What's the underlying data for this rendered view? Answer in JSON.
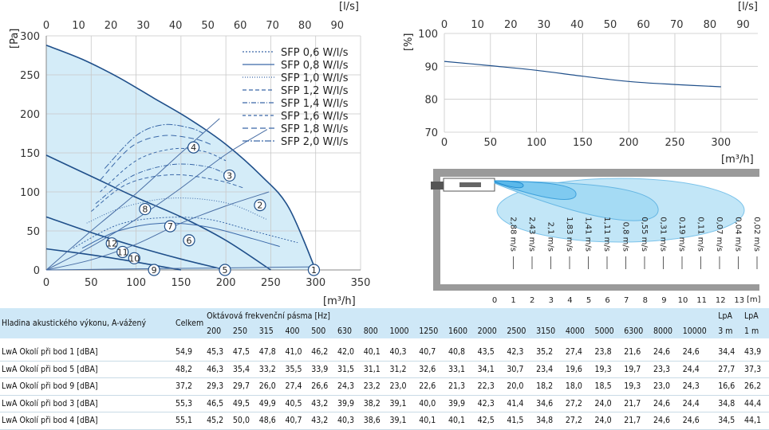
{
  "chart_data": [
    {
      "type": "line",
      "title": "",
      "xlabel": "[m³/h]",
      "ylabel": "[Pa]",
      "top_xlabel": "[l/s]",
      "xlim": [
        0,
        350
      ],
      "ylim": [
        0,
        300
      ],
      "x_ticks": [
        "0",
        "50",
        "100",
        "150",
        "200",
        "250",
        "300",
        "350"
      ],
      "y_ticks": [
        "0",
        "50",
        "100",
        "150",
        "200",
        "250",
        "300"
      ],
      "top_ticks": [
        "0",
        "10",
        "20",
        "30",
        "40",
        "50",
        "60",
        "70",
        "80",
        "90"
      ],
      "legend_position": "top-right",
      "fan_curves": [
        {
          "x": [
            0,
            40,
            80,
            120,
            160,
            200,
            240,
            270,
            300
          ],
          "y": [
            288,
            270,
            247,
            220,
            193,
            161,
            120,
            80,
            0
          ]
        },
        {
          "x": [
            0,
            50,
            100,
            150,
            200,
            250
          ],
          "y": [
            147,
            120,
            93,
            68,
            38,
            0
          ]
        },
        {
          "x": [
            0,
            50,
            100,
            150,
            200
          ],
          "y": [
            68,
            48,
            30,
            14,
            0
          ]
        },
        {
          "x": [
            0,
            40,
            80,
            120,
            150
          ],
          "y": [
            27,
            21,
            14,
            6,
            0
          ]
        }
      ],
      "system_curves": [
        {
          "x": [
            0,
            75,
            150,
            225,
            300
          ],
          "y": [
            0,
            1,
            2,
            3,
            4
          ]
        },
        {
          "x": [
            0,
            50,
            100,
            150,
            200,
            248
          ],
          "y": [
            0,
            13,
            33,
            60,
            82,
            100
          ]
        },
        {
          "x": [
            0,
            50,
            100,
            150,
            200,
            246
          ],
          "y": [
            0,
            30,
            65,
            105,
            148,
            180
          ]
        },
        {
          "x": [
            0,
            50,
            100,
            150,
            193
          ],
          "y": [
            0,
            50,
            98,
            150,
            194
          ]
        }
      ],
      "points": [
        {
          "label": "1",
          "x": 298,
          "y": 0
        },
        {
          "label": "2",
          "x": 238,
          "y": 83
        },
        {
          "label": "3",
          "x": 204,
          "y": 121
        },
        {
          "label": "4",
          "x": 164,
          "y": 157
        },
        {
          "label": "5",
          "x": 199,
          "y": 0
        },
        {
          "label": "6",
          "x": 159,
          "y": 38
        },
        {
          "label": "7",
          "x": 138,
          "y": 56
        },
        {
          "label": "8",
          "x": 110,
          "y": 78
        },
        {
          "label": "9",
          "x": 120,
          "y": 0
        },
        {
          "label": "10",
          "x": 98,
          "y": 15
        },
        {
          "label": "11",
          "x": 85,
          "y": 23
        },
        {
          "label": "12",
          "x": 73,
          "y": 34
        }
      ],
      "series": [
        {
          "name": "SFP 0,6 W/l/s",
          "dash": "2,2",
          "x": [
            30,
            80,
            130,
            180,
            230,
            280
          ],
          "y": [
            28,
            58,
            67,
            65,
            50,
            35
          ]
        },
        {
          "name": "SFP 0,8 W/l/s",
          "dash": "",
          "x": [
            40,
            80,
            130,
            180,
            230,
            260
          ],
          "y": [
            28,
            50,
            60,
            55,
            40,
            30
          ]
        },
        {
          "name": "SFP 1,0 W/l/s",
          "dash": "1,2",
          "x": [
            45,
            85,
            140,
            200,
            245
          ],
          "y": [
            60,
            80,
            92,
            86,
            65
          ]
        },
        {
          "name": "SFP 1,2 W/l/s",
          "dash": "5,3",
          "x": [
            50,
            90,
            140,
            190,
            220
          ],
          "y": [
            75,
            110,
            122,
            115,
            105
          ]
        },
        {
          "name": "SFP 1,4 W/l/s",
          "dash": "6,2,1,2",
          "x": [
            55,
            95,
            140,
            180,
            205
          ],
          "y": [
            85,
            120,
            135,
            132,
            120
          ]
        },
        {
          "name": "SFP 1,6 W/l/s",
          "dash": "4,3",
          "x": [
            60,
            100,
            140,
            175,
            200
          ],
          "y": [
            100,
            140,
            155,
            152,
            140
          ]
        },
        {
          "name": "SFP 1,8 W/l/s",
          "dash": "7,4",
          "x": [
            60,
            95,
            130,
            165,
            185
          ],
          "y": [
            115,
            158,
            172,
            168,
            160
          ]
        },
        {
          "name": "SFP 2,0 W/l/s",
          "dash": "8,2,2,2",
          "x": [
            65,
            100,
            130,
            160,
            175
          ],
          "y": [
            130,
            172,
            186,
            182,
            175
          ]
        }
      ]
    },
    {
      "type": "line",
      "title": "",
      "xlabel": "[m³/h]",
      "ylabel": "[%]",
      "top_xlabel": "[l/s]",
      "xlim": [
        0,
        340
      ],
      "ylim": [
        70,
        100
      ],
      "x_ticks": [
        "0",
        "50",
        "100",
        "150",
        "200",
        "250",
        "300"
      ],
      "y_ticks": [
        "70",
        "80",
        "90",
        "100"
      ],
      "top_ticks": [
        "0",
        "10",
        "20",
        "30",
        "40",
        "50",
        "60",
        "70",
        "80",
        "90"
      ],
      "series": [
        {
          "x": [
            0,
            50,
            100,
            150,
            200,
            250,
            300
          ],
          "y": [
            91.5,
            90.2,
            88.8,
            87.0,
            85.4,
            84.5,
            83.8
          ]
        }
      ]
    }
  ],
  "throw": {
    "velocities": [
      "2,88 m/s",
      "2,43 m/s",
      "2,1 m/s",
      "1,83 m/s",
      "1,41 m/s",
      "1,11 m/s",
      "0,8 m/s",
      "0,55 m/s",
      "0,31 m/s",
      "0,19 m/s",
      "0,11 m/s",
      "0,07 m/s",
      "0,04 m/s",
      "0,02 m/s"
    ],
    "x_ticks": [
      "0",
      "1",
      "2",
      "3",
      "4",
      "5",
      "6",
      "7",
      "8",
      "9",
      "10",
      "11",
      "12",
      "13"
    ],
    "unit": "[m]"
  },
  "table": {
    "row_header": "Hladina akustického výkonu, A-vážený",
    "total_header": "Celkem",
    "band_header": "Oktávová frekvenční pásma [Hz]",
    "frequencies": [
      "200",
      "250",
      "315",
      "400",
      "500",
      "630",
      "800",
      "1000",
      "1250",
      "1600",
      "2000",
      "2500",
      "3150",
      "4000",
      "5000",
      "6300",
      "8000",
      "10000"
    ],
    "lpa3_label": "LpA",
    "lpa3_unit": "3 m",
    "lpa1_label": "LpA",
    "lpa1_unit": "1 m",
    "rows": [
      {
        "label": "LwA Okolí při bod 1 [dBA]",
        "total": "54,9",
        "values": [
          "45,3",
          "47,5",
          "47,8",
          "41,0",
          "46,2",
          "42,0",
          "40,1",
          "40,3",
          "40,7",
          "40,8",
          "43,5",
          "42,3",
          "35,2",
          "27,4",
          "23,8",
          "21,6",
          "24,6",
          "24,6"
        ],
        "lpa3": "34,4",
        "lpa1": "43,9"
      },
      {
        "label": "LwA Okolí při bod 5 [dBA]",
        "total": "48,2",
        "values": [
          "46,3",
          "35,4",
          "33,2",
          "35,5",
          "33,9",
          "31,5",
          "31,1",
          "31,2",
          "32,6",
          "33,1",
          "34,1",
          "30,7",
          "23,4",
          "19,6",
          "19,3",
          "19,7",
          "23,3",
          "24,4"
        ],
        "lpa3": "27,7",
        "lpa1": "37,3"
      },
      {
        "label": "LwA Okolí při bod 9 [dBA]",
        "total": "37,2",
        "values": [
          "29,3",
          "29,7",
          "26,0",
          "27,4",
          "26,6",
          "24,3",
          "23,2",
          "23,0",
          "22,6",
          "21,3",
          "22,3",
          "20,0",
          "18,2",
          "18,0",
          "18,5",
          "19,3",
          "23,0",
          "24,3"
        ],
        "lpa3": "16,6",
        "lpa1": "26,2"
      },
      {
        "label": "LwA Okolí při bod 3 [dBA]",
        "total": "55,3",
        "values": [
          "46,5",
          "49,5",
          "49,9",
          "40,5",
          "43,2",
          "39,9",
          "38,2",
          "39,1",
          "40,0",
          "39,9",
          "42,3",
          "41,4",
          "34,6",
          "27,2",
          "24,0",
          "21,7",
          "24,6",
          "24,4"
        ],
        "lpa3": "34,8",
        "lpa1": "44,4"
      },
      {
        "label": "LwA Okolí při bod 4 [dBA]",
        "total": "55,1",
        "values": [
          "45,2",
          "50,0",
          "48,6",
          "40,7",
          "43,2",
          "40,3",
          "38,6",
          "39,1",
          "40,1",
          "40,1",
          "42,5",
          "41,5",
          "34,8",
          "27,2",
          "24,0",
          "21,7",
          "24,6",
          "24,6"
        ],
        "lpa3": "34,5",
        "lpa1": "44,1"
      }
    ]
  }
}
